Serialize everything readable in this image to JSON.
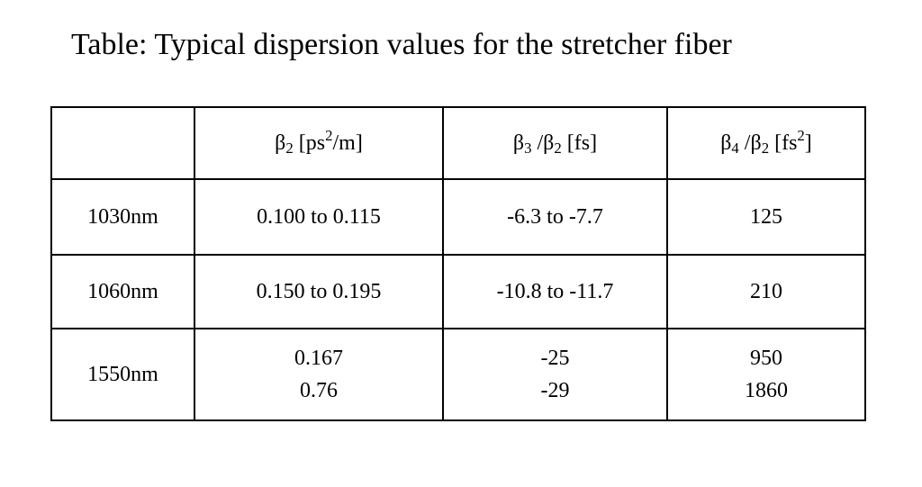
{
  "title": "Table: Typical dispersion values for the stretcher fiber",
  "header": {
    "corner": "",
    "beta2": {
      "symbol": "β",
      "sub": "2",
      "unit_pre": " [ps",
      "unit_sup": "2",
      "unit_post": "/m]"
    },
    "beta3": {
      "symbol": "β",
      "sub": "3",
      "mid": " /β",
      "sub2": "2",
      "unit": " [fs]"
    },
    "beta4": {
      "symbol": "β",
      "sub": "4",
      "mid": " /β",
      "sub2": "2",
      "unit_pre": " [fs",
      "unit_sup": "2",
      "unit_post": "]"
    }
  },
  "rows": [
    {
      "wavelength": "1030nm",
      "beta2": [
        "0.100 to 0.115"
      ],
      "beta3": [
        "-6.3 to -7.7"
      ],
      "beta4": [
        "125"
      ]
    },
    {
      "wavelength": "1060nm",
      "beta2": [
        "0.150 to 0.195"
      ],
      "beta3": [
        "-10.8 to -11.7"
      ],
      "beta4": [
        "210"
      ]
    },
    {
      "wavelength": "1550nm",
      "beta2": [
        "0.167",
        "0.76"
      ],
      "beta3": [
        "-25",
        "-29"
      ],
      "beta4": [
        "950",
        "1860"
      ]
    }
  ]
}
